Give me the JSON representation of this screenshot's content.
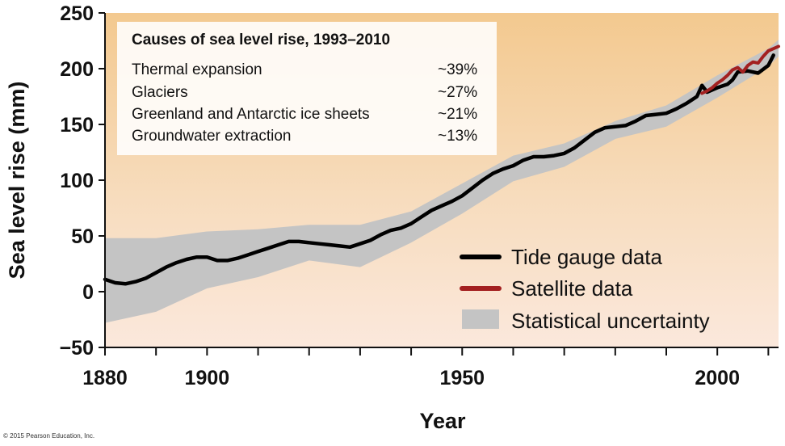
{
  "chart_data": {
    "type": "line",
    "xlabel": "Year",
    "ylabel": "Sea level rise (mm)",
    "xlim": [
      1880,
      2012
    ],
    "ylim": [
      -50,
      250
    ],
    "x_ticks": [
      1880,
      1890,
      1900,
      1910,
      1920,
      1930,
      1940,
      1950,
      1960,
      1970,
      1980,
      1990,
      2000,
      2010
    ],
    "x_tick_labels": [
      "1880",
      "",
      "1900",
      "",
      "",
      "",
      "",
      "1950",
      "",
      "",
      "",
      "",
      "2000",
      ""
    ],
    "y_ticks": [
      -50,
      0,
      50,
      100,
      150,
      200,
      250
    ],
    "y_tick_labels": [
      "−50",
      "0",
      "50",
      "100",
      "150",
      "200",
      "250"
    ],
    "grid": false,
    "background": "warm gradient (light peach at bottom to orange-tan at top)",
    "series": [
      {
        "name": "Tide gauge data",
        "color": "#000000",
        "points": [
          [
            1880,
            11
          ],
          [
            1882,
            8
          ],
          [
            1884,
            7
          ],
          [
            1886,
            9
          ],
          [
            1888,
            12
          ],
          [
            1890,
            17
          ],
          [
            1892,
            22
          ],
          [
            1894,
            26
          ],
          [
            1896,
            29
          ],
          [
            1898,
            31
          ],
          [
            1900,
            31
          ],
          [
            1902,
            28
          ],
          [
            1904,
            28
          ],
          [
            1906,
            30
          ],
          [
            1908,
            33
          ],
          [
            1910,
            36
          ],
          [
            1912,
            39
          ],
          [
            1914,
            42
          ],
          [
            1916,
            45
          ],
          [
            1918,
            45
          ],
          [
            1920,
            44
          ],
          [
            1922,
            43
          ],
          [
            1924,
            42
          ],
          [
            1926,
            41
          ],
          [
            1928,
            40
          ],
          [
            1930,
            43
          ],
          [
            1932,
            46
          ],
          [
            1934,
            51
          ],
          [
            1936,
            55
          ],
          [
            1938,
            57
          ],
          [
            1940,
            61
          ],
          [
            1942,
            67
          ],
          [
            1944,
            73
          ],
          [
            1946,
            77
          ],
          [
            1948,
            81
          ],
          [
            1950,
            86
          ],
          [
            1952,
            93
          ],
          [
            1954,
            100
          ],
          [
            1956,
            106
          ],
          [
            1958,
            110
          ],
          [
            1960,
            113
          ],
          [
            1962,
            118
          ],
          [
            1964,
            121
          ],
          [
            1966,
            121
          ],
          [
            1968,
            122
          ],
          [
            1970,
            124
          ],
          [
            1972,
            129
          ],
          [
            1974,
            136
          ],
          [
            1976,
            143
          ],
          [
            1978,
            147
          ],
          [
            1980,
            148
          ],
          [
            1982,
            149
          ],
          [
            1984,
            153
          ],
          [
            1986,
            158
          ],
          [
            1988,
            159
          ],
          [
            1990,
            160
          ],
          [
            1992,
            164
          ],
          [
            1994,
            169
          ],
          [
            1996,
            175
          ],
          [
            1997,
            185
          ],
          [
            1998,
            179
          ],
          [
            2000,
            183
          ],
          [
            2002,
            186
          ],
          [
            2003,
            190
          ],
          [
            2004,
            197
          ],
          [
            2006,
            198
          ],
          [
            2008,
            196
          ],
          [
            2010,
            203
          ],
          [
            2011,
            212
          ]
        ]
      },
      {
        "name": "Satellite data",
        "color": "#a32020",
        "points": [
          [
            1997,
            178
          ],
          [
            1998,
            180
          ],
          [
            1999,
            183
          ],
          [
            2000,
            187
          ],
          [
            2001,
            190
          ],
          [
            2002,
            194
          ],
          [
            2003,
            199
          ],
          [
            2004,
            201
          ],
          [
            2005,
            197
          ],
          [
            2006,
            203
          ],
          [
            2007,
            206
          ],
          [
            2008,
            205
          ],
          [
            2009,
            211
          ],
          [
            2010,
            216
          ],
          [
            2011,
            218
          ],
          [
            2012,
            220
          ]
        ]
      }
    ],
    "uncertainty_band": {
      "name": "Statistical uncertainty",
      "color": "#c4c4c4",
      "upper": [
        [
          1880,
          48
        ],
        [
          1890,
          48
        ],
        [
          1900,
          54
        ],
        [
          1910,
          56
        ],
        [
          1920,
          60
        ],
        [
          1930,
          60
        ],
        [
          1940,
          72
        ],
        [
          1950,
          97
        ],
        [
          1960,
          122
        ],
        [
          1970,
          133
        ],
        [
          1980,
          153
        ],
        [
          1990,
          167
        ],
        [
          2000,
          194
        ],
        [
          2010,
          218
        ],
        [
          2012,
          226
        ]
      ],
      "lower": [
        [
          1880,
          -28
        ],
        [
          1890,
          -18
        ],
        [
          1900,
          3
        ],
        [
          1910,
          13
        ],
        [
          1920,
          28
        ],
        [
          1930,
          22
        ],
        [
          1940,
          44
        ],
        [
          1950,
          70
        ],
        [
          1960,
          99
        ],
        [
          1970,
          112
        ],
        [
          1980,
          137
        ],
        [
          1990,
          148
        ],
        [
          2000,
          174
        ],
        [
          2010,
          202
        ],
        [
          2012,
          211
        ]
      ]
    },
    "legend": {
      "placement": "bottom-right",
      "entries": [
        {
          "label": "Tide gauge data",
          "swatch": "line",
          "color": "#000000"
        },
        {
          "label": "Satellite data",
          "swatch": "line",
          "color": "#a32020"
        },
        {
          "label": "Statistical uncertainty",
          "swatch": "band",
          "color": "#c4c4c4"
        }
      ]
    },
    "inset_table": {
      "title": "Causes of sea level rise, 1993–2010",
      "rows": [
        {
          "cause": "Thermal expansion",
          "share": "~39%"
        },
        {
          "cause": "Glaciers",
          "share": "~27%"
        },
        {
          "cause": "Greenland and Antarctic ice sheets",
          "share": "~21%"
        },
        {
          "cause": "Groundwater extraction",
          "share": "~13%"
        }
      ]
    }
  },
  "copyright": "© 2015 Pearson Education, Inc."
}
